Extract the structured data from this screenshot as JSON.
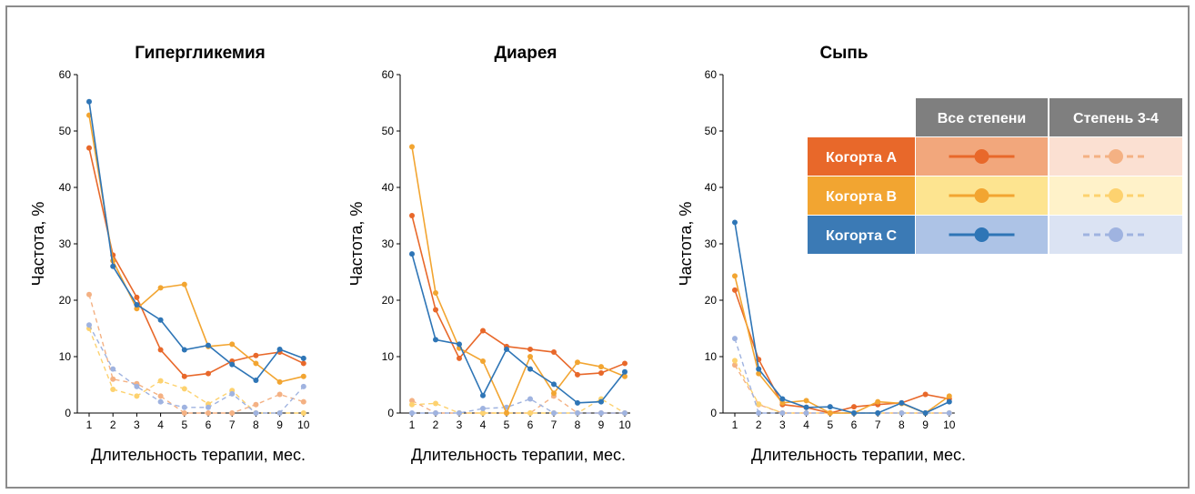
{
  "chart_data": [
    {
      "type": "line",
      "title": "Гипергликемия",
      "xlabel": "Длительность терапии, мес.",
      "ylabel": "Частота, %",
      "x": [
        1,
        2,
        3,
        4,
        5,
        6,
        7,
        8,
        9,
        10
      ],
      "ylim": [
        0,
        60
      ],
      "yticks": [
        0,
        10,
        20,
        30,
        40,
        50,
        60
      ],
      "series": [
        {
          "cohort": "A",
          "grade": "all",
          "values": [
            47,
            28,
            20.5,
            11.2,
            6.5,
            7,
            9.2,
            10.2,
            10.8,
            8.8
          ]
        },
        {
          "cohort": "B",
          "grade": "all",
          "values": [
            52.8,
            27,
            18.5,
            22.2,
            22.8,
            11.8,
            12.2,
            8.8,
            5.5,
            6.5
          ]
        },
        {
          "cohort": "C",
          "grade": "all",
          "values": [
            55.2,
            26,
            19.2,
            16.5,
            11.2,
            12,
            8.6,
            5.8,
            11.3,
            9.7
          ]
        },
        {
          "cohort": "A",
          "grade": "3-4",
          "values": [
            21,
            6,
            5.2,
            3,
            0,
            0,
            0,
            1.5,
            3.3,
            2
          ]
        },
        {
          "cohort": "B",
          "grade": "3-4",
          "values": [
            15,
            4.2,
            3,
            5.7,
            4.3,
            1.6,
            4,
            0,
            0,
            0
          ]
        },
        {
          "cohort": "C",
          "grade": "3-4",
          "values": [
            15.6,
            7.8,
            4.7,
            2,
            1,
            1,
            3.4,
            0,
            0,
            4.7
          ]
        }
      ]
    },
    {
      "type": "line",
      "title": "Диарея",
      "xlabel": "Длительность терапии, мес.",
      "ylabel": "Частота, %",
      "x": [
        1,
        2,
        3,
        4,
        5,
        6,
        7,
        8,
        9,
        10
      ],
      "ylim": [
        0,
        60
      ],
      "yticks": [
        0,
        10,
        20,
        30,
        40,
        50,
        60
      ],
      "series": [
        {
          "cohort": "A",
          "grade": "all",
          "values": [
            35,
            18.3,
            9.7,
            14.6,
            11.8,
            11.3,
            10.8,
            6.8,
            7.1,
            8.8
          ]
        },
        {
          "cohort": "B",
          "grade": "all",
          "values": [
            47.2,
            21.3,
            11.5,
            9.2,
            0,
            10,
            3.5,
            9,
            8.2,
            6.5
          ]
        },
        {
          "cohort": "C",
          "grade": "all",
          "values": [
            28.2,
            13,
            12.2,
            3.1,
            11.3,
            7.8,
            5.1,
            1.8,
            2,
            7.3
          ]
        },
        {
          "cohort": "A",
          "grade": "3-4",
          "values": [
            2.2,
            0,
            0,
            0,
            0,
            0,
            3,
            0,
            0,
            0
          ]
        },
        {
          "cohort": "B",
          "grade": "3-4",
          "values": [
            1.5,
            1.7,
            0,
            0,
            0,
            0,
            0,
            0,
            2.5,
            0
          ]
        },
        {
          "cohort": "C",
          "grade": "3-4",
          "values": [
            0,
            0,
            0,
            0.8,
            1,
            2.5,
            0,
            0,
            0,
            0
          ]
        }
      ]
    },
    {
      "type": "line",
      "title": "Сыпь",
      "xlabel": "Длительность терапии, мес.",
      "ylabel": "Частота, %",
      "x": [
        1,
        2,
        3,
        4,
        5,
        6,
        7,
        8,
        9,
        10
      ],
      "ylim": [
        0,
        60
      ],
      "yticks": [
        0,
        10,
        20,
        30,
        40,
        50,
        60
      ],
      "series": [
        {
          "cohort": "A",
          "grade": "all",
          "values": [
            21.8,
            9.5,
            1.5,
            1,
            0,
            1.1,
            1.5,
            1.8,
            3.3,
            2.5
          ]
        },
        {
          "cohort": "B",
          "grade": "all",
          "values": [
            24.3,
            7,
            1.8,
            2.2,
            0,
            0,
            2,
            1.7,
            0,
            3
          ]
        },
        {
          "cohort": "C",
          "grade": "all",
          "values": [
            33.8,
            7.8,
            2.5,
            1,
            1.1,
            0,
            0,
            1.8,
            0,
            2
          ]
        },
        {
          "cohort": "A",
          "grade": "3-4",
          "values": [
            8.5,
            1.5,
            0,
            0,
            0,
            0,
            0,
            0,
            0,
            0
          ]
        },
        {
          "cohort": "B",
          "grade": "3-4",
          "values": [
            9.3,
            1.6,
            0,
            0,
            0,
            0,
            0,
            0,
            0,
            0
          ]
        },
        {
          "cohort": "C",
          "grade": "3-4",
          "values": [
            13.2,
            0,
            0,
            0,
            0,
            0,
            0,
            0,
            0,
            0
          ]
        }
      ]
    }
  ],
  "legend": {
    "header_all": "Все степени",
    "header_34": "Степень 3-4",
    "rows": [
      {
        "cohort": "A",
        "label": "Когорта A"
      },
      {
        "cohort": "B",
        "label": "Когорта B"
      },
      {
        "cohort": "C",
        "label": "Когорта C"
      }
    ],
    "header_color": "#7f7f7f"
  },
  "colors": {
    "A": {
      "all": "#e8682a",
      "light": "#f4b183",
      "row": "#e8682a",
      "cell_all": "#f2a77c",
      "cell_34": "#fbe0d2"
    },
    "B": {
      "all": "#f2a531",
      "light": "#fdd26f",
      "row": "#f2a531",
      "cell_all": "#fde490",
      "cell_34": "#fff2c9"
    },
    "C": {
      "all": "#2e75b6",
      "light": "#9fb3e0",
      "row": "#3b7ab5",
      "cell_all": "#adc3e6",
      "cell_34": "#dbe3f3"
    }
  }
}
